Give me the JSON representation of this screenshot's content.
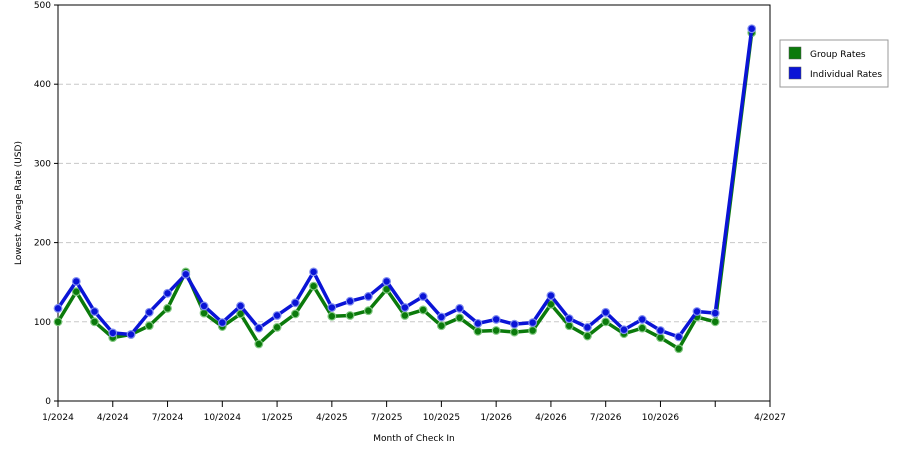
{
  "chart_data": {
    "type": "line",
    "xlabel": "Month of Check In",
    "ylabel": "Lowest Average Rate (USD)",
    "ylim": [
      0,
      500
    ],
    "yticks": [
      0,
      100,
      200,
      300,
      400,
      500
    ],
    "x_range": [
      "1/2024",
      "4/2027"
    ],
    "xticks": [
      "1/2024",
      "4/2024",
      "7/2024",
      "10/2024",
      "1/2025",
      "4/2025",
      "7/2025",
      "10/2025",
      "1/2026",
      "4/2026",
      "7/2026",
      "10/2026",
      "4/2027"
    ],
    "x": [
      "1/2024",
      "2/2024",
      "3/2024",
      "4/2024",
      "5/2024",
      "6/2024",
      "7/2024",
      "8/2024",
      "9/2024",
      "10/2024",
      "11/2024",
      "12/2024",
      "1/2025",
      "2/2025",
      "3/2025",
      "4/2025",
      "5/2025",
      "6/2025",
      "7/2025",
      "8/2025",
      "9/2025",
      "10/2025",
      "11/2025",
      "12/2025",
      "1/2026",
      "2/2026",
      "3/2026",
      "4/2026",
      "5/2026",
      "6/2026",
      "7/2026",
      "8/2026",
      "9/2026",
      "10/2026",
      "11/2026",
      "12/2026",
      "1/2027",
      "3/2027"
    ],
    "grid": "horizontal dashed",
    "legend_position": "right",
    "series": [
      {
        "name": "Group Rates",
        "color": "#0b7a0b",
        "values": [
          100,
          138,
          100,
          80,
          84,
          95,
          117,
          163,
          111,
          94,
          110,
          72,
          93,
          110,
          145,
          107,
          108,
          114,
          141,
          108,
          115,
          95,
          105,
          88,
          89,
          87,
          89,
          122,
          95,
          82,
          100,
          85,
          92,
          80,
          66,
          106,
          100,
          465
        ]
      },
      {
        "name": "Individual Rates",
        "color": "#0a14d6",
        "values": [
          117,
          151,
          113,
          86,
          84,
          112,
          136,
          160,
          120,
          99,
          120,
          92,
          108,
          124,
          163,
          118,
          126,
          132,
          151,
          118,
          132,
          106,
          117,
          98,
          103,
          97,
          99,
          133,
          104,
          93,
          112,
          90,
          103,
          89,
          81,
          113,
          111,
          470
        ]
      }
    ]
  }
}
